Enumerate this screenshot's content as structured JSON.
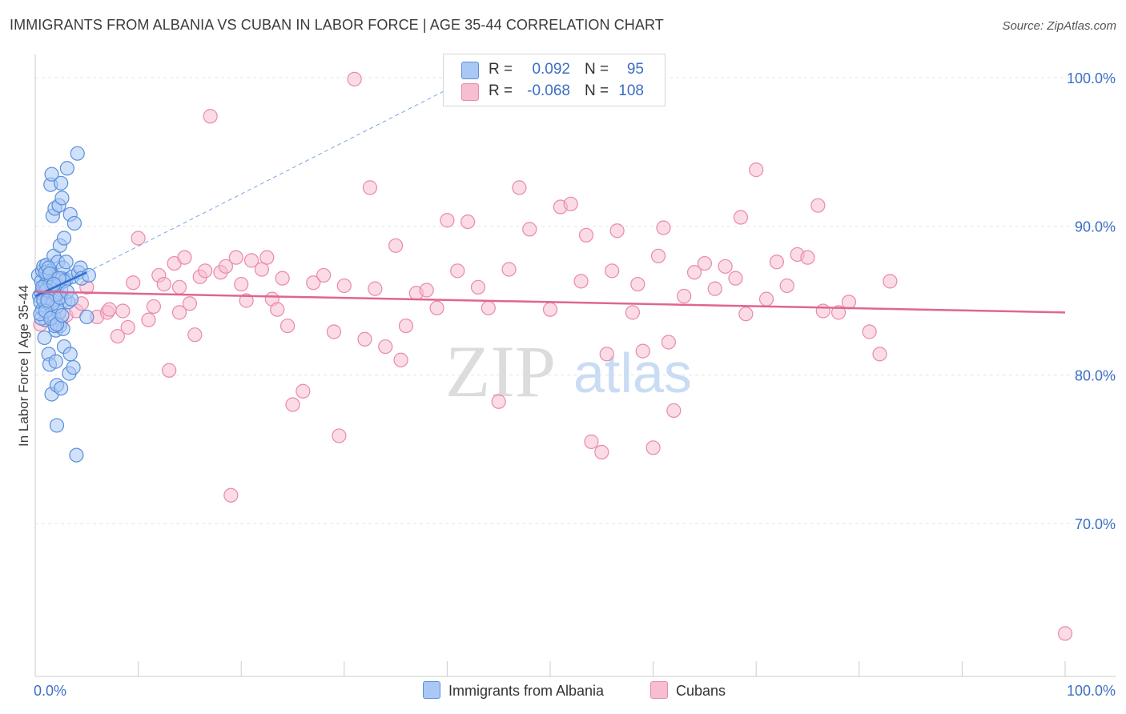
{
  "header": {
    "title": "IMMIGRANTS FROM ALBANIA VS CUBAN IN LABOR FORCE | AGE 35-44 CORRELATION CHART",
    "source": "Source: ZipAtlas.com"
  },
  "watermark": {
    "zip": "ZIP",
    "atlas": "atlas"
  },
  "legend": {
    "rows": [
      {
        "r_label": "R =",
        "r_value": "0.092",
        "n_label": "N =",
        "n_value": "95",
        "color": "#a9c8f5",
        "border": "#5b8fd9"
      },
      {
        "r_label": "R =",
        "r_value": "-0.068",
        "n_label": "N =",
        "n_value": "108",
        "color": "#f7bdd0",
        "border": "#e88aaa"
      }
    ]
  },
  "bottom_legend": [
    {
      "label": "Immigrants from Albania",
      "color": "#a9c8f5",
      "border": "#5b8fd9"
    },
    {
      "label": "Cubans",
      "color": "#f7bdd0",
      "border": "#e88aaa"
    }
  ],
  "chart_data": {
    "type": "scatter",
    "title": "IMMIGRANTS FROM ALBANIA VS CUBAN IN LABOR FORCE | AGE 35-44 CORRELATION CHART",
    "xlabel": "",
    "ylabel": "In Labor Force | Age 35-44",
    "xlim": [
      0,
      105
    ],
    "ylim": [
      60.5,
      103
    ],
    "x_tick_labels": [
      "0.0%",
      "100.0%"
    ],
    "y_ticks": [
      100,
      90,
      80,
      70
    ],
    "y_tick_labels": [
      "100.0%",
      "90.0%",
      "80.0%",
      "70.0%"
    ],
    "grid": true,
    "series": [
      {
        "name": "Immigrants from Albania",
        "color": "#5b8fd9",
        "fill": "#a9c8f5",
        "trend": {
          "x0": 0,
          "y0": 85.3,
          "x1": 5,
          "y1": 86.9,
          "ext_x1": 40,
          "ext_y1": 99.2
        },
        "points": [
          [
            0.3,
            86.7
          ],
          [
            0.4,
            85.3
          ],
          [
            0.5,
            84.9
          ],
          [
            0.6,
            85.5
          ],
          [
            0.6,
            86.3
          ],
          [
            0.7,
            87.0
          ],
          [
            0.7,
            84.4
          ],
          [
            0.8,
            87.3
          ],
          [
            0.8,
            85.8
          ],
          [
            0.9,
            82.5
          ],
          [
            1.0,
            86.1
          ],
          [
            1.0,
            83.7
          ],
          [
            1.1,
            84.6
          ],
          [
            1.1,
            87.4
          ],
          [
            1.2,
            85.2
          ],
          [
            1.3,
            86.0
          ],
          [
            1.3,
            81.4
          ],
          [
            1.4,
            84.0
          ],
          [
            1.4,
            80.7
          ],
          [
            1.5,
            92.8
          ],
          [
            1.5,
            87.0
          ],
          [
            1.6,
            78.7
          ],
          [
            1.6,
            93.5
          ],
          [
            1.7,
            90.7
          ],
          [
            1.7,
            85.6
          ],
          [
            1.8,
            88.0
          ],
          [
            1.8,
            84.0
          ],
          [
            1.9,
            91.2
          ],
          [
            1.9,
            86.6
          ],
          [
            2.0,
            80.9
          ],
          [
            2.0,
            83.0
          ],
          [
            2.1,
            79.3
          ],
          [
            2.1,
            76.6
          ],
          [
            2.2,
            87.6
          ],
          [
            2.2,
            85.4
          ],
          [
            2.3,
            91.4
          ],
          [
            2.3,
            84.2
          ],
          [
            2.4,
            88.7
          ],
          [
            2.4,
            83.3
          ],
          [
            2.5,
            92.9
          ],
          [
            2.5,
            79.1
          ],
          [
            2.6,
            91.9
          ],
          [
            2.6,
            86.5
          ],
          [
            2.7,
            87.2
          ],
          [
            2.7,
            83.1
          ],
          [
            2.8,
            89.2
          ],
          [
            2.8,
            81.9
          ],
          [
            2.9,
            85.0
          ],
          [
            3.0,
            87.6
          ],
          [
            3.0,
            86.4
          ],
          [
            3.1,
            93.9
          ],
          [
            3.2,
            84.9
          ],
          [
            3.3,
            80.1
          ],
          [
            3.4,
            90.8
          ],
          [
            3.4,
            81.4
          ],
          [
            3.6,
            86.6
          ],
          [
            3.7,
            80.5
          ],
          [
            3.8,
            90.2
          ],
          [
            4.0,
            74.6
          ],
          [
            4.1,
            94.9
          ],
          [
            4.2,
            86.9
          ],
          [
            4.4,
            87.2
          ],
          [
            4.5,
            86.5
          ],
          [
            5.0,
            83.9
          ],
          [
            5.2,
            86.7
          ],
          [
            0.9,
            85.6
          ],
          [
            1.2,
            86.6
          ],
          [
            1.5,
            86.2
          ],
          [
            1.8,
            85.1
          ],
          [
            2.1,
            84.6
          ],
          [
            0.6,
            83.8
          ],
          [
            1.0,
            86.9
          ],
          [
            1.3,
            87.2
          ],
          [
            1.6,
            85.9
          ],
          [
            1.9,
            83.3
          ],
          [
            2.2,
            86.0
          ],
          [
            2.5,
            85.7
          ],
          [
            2.8,
            86.3
          ],
          [
            0.8,
            85.0
          ],
          [
            1.1,
            85.7
          ],
          [
            1.4,
            86.8
          ],
          [
            1.7,
            84.8
          ],
          [
            2.0,
            85.4
          ],
          [
            2.3,
            86.5
          ],
          [
            0.5,
            84.1
          ],
          [
            0.7,
            85.9
          ],
          [
            1.0,
            84.3
          ],
          [
            1.2,
            85.0
          ],
          [
            1.5,
            83.8
          ],
          [
            1.8,
            86.1
          ],
          [
            2.1,
            83.4
          ],
          [
            2.4,
            85.2
          ],
          [
            2.6,
            84.0
          ],
          [
            3.1,
            85.6
          ],
          [
            3.5,
            85.1
          ]
        ]
      },
      {
        "name": "Cubans",
        "color": "#e88aaa",
        "fill": "#f7bdd0",
        "trend": {
          "x0": 0,
          "y0": 85.6,
          "x1": 100,
          "y1": 84.2
        },
        "points": [
          [
            0.5,
            83.4
          ],
          [
            2.5,
            83.6
          ],
          [
            3.0,
            84.0
          ],
          [
            4.0,
            84.3
          ],
          [
            4.5,
            84.8
          ],
          [
            5.0,
            85.9
          ],
          [
            6.0,
            83.9
          ],
          [
            7.0,
            84.2
          ],
          [
            7.2,
            84.4
          ],
          [
            8.0,
            82.6
          ],
          [
            8.5,
            84.3
          ],
          [
            9.0,
            83.2
          ],
          [
            9.5,
            86.2
          ],
          [
            10.0,
            89.2
          ],
          [
            11.0,
            83.7
          ],
          [
            11.5,
            84.6
          ],
          [
            12.0,
            86.7
          ],
          [
            12.5,
            86.1
          ],
          [
            13.0,
            80.3
          ],
          [
            13.5,
            87.5
          ],
          [
            14.0,
            85.9
          ],
          [
            14.5,
            87.9
          ],
          [
            15.0,
            84.8
          ],
          [
            15.5,
            82.7
          ],
          [
            16.0,
            86.6
          ],
          [
            16.5,
            87.0
          ],
          [
            17.0,
            97.4
          ],
          [
            18.0,
            86.9
          ],
          [
            18.5,
            87.3
          ],
          [
            19.0,
            71.9
          ],
          [
            19.5,
            87.9
          ],
          [
            20.0,
            86.1
          ],
          [
            21.0,
            87.7
          ],
          [
            22.0,
            87.1
          ],
          [
            22.5,
            87.9
          ],
          [
            23.0,
            85.1
          ],
          [
            23.5,
            84.4
          ],
          [
            24.0,
            86.5
          ],
          [
            24.5,
            83.3
          ],
          [
            25.0,
            78.0
          ],
          [
            26.0,
            78.9
          ],
          [
            27.0,
            86.2
          ],
          [
            28.0,
            86.7
          ],
          [
            29.0,
            82.9
          ],
          [
            29.5,
            75.9
          ],
          [
            30.0,
            86.0
          ],
          [
            31.0,
            99.9
          ],
          [
            32.0,
            82.4
          ],
          [
            32.5,
            92.6
          ],
          [
            33.0,
            85.8
          ],
          [
            34.0,
            81.9
          ],
          [
            35.0,
            88.7
          ],
          [
            36.0,
            83.3
          ],
          [
            37.0,
            85.5
          ],
          [
            38.0,
            85.7
          ],
          [
            39.0,
            84.5
          ],
          [
            40.0,
            90.4
          ],
          [
            41.0,
            87.0
          ],
          [
            42.0,
            90.3
          ],
          [
            43.0,
            85.9
          ],
          [
            44.0,
            84.5
          ],
          [
            45.0,
            78.2
          ],
          [
            46.0,
            87.1
          ],
          [
            47.0,
            92.6
          ],
          [
            50.0,
            84.4
          ],
          [
            51.0,
            91.3
          ],
          [
            52.0,
            91.5
          ],
          [
            53.0,
            86.3
          ],
          [
            53.5,
            89.4
          ],
          [
            54.0,
            75.5
          ],
          [
            55.0,
            74.8
          ],
          [
            55.5,
            81.4
          ],
          [
            56.0,
            87.0
          ],
          [
            56.5,
            89.7
          ],
          [
            58.0,
            84.2
          ],
          [
            59.0,
            81.6
          ],
          [
            60.0,
            75.1
          ],
          [
            60.5,
            88.0
          ],
          [
            61.0,
            89.9
          ],
          [
            61.5,
            82.2
          ],
          [
            62.0,
            77.6
          ],
          [
            63.0,
            85.3
          ],
          [
            64.0,
            86.9
          ],
          [
            65.0,
            87.5
          ],
          [
            66.0,
            85.8
          ],
          [
            67.0,
            87.3
          ],
          [
            68.0,
            86.5
          ],
          [
            68.5,
            90.6
          ],
          [
            69.0,
            84.1
          ],
          [
            70.0,
            93.8
          ],
          [
            71.0,
            85.1
          ],
          [
            72.0,
            87.6
          ],
          [
            73.0,
            86.0
          ],
          [
            74.0,
            88.1
          ],
          [
            75.0,
            87.9
          ],
          [
            76.0,
            91.4
          ],
          [
            76.5,
            84.3
          ],
          [
            78.0,
            84.2
          ],
          [
            79.0,
            84.9
          ],
          [
            81.0,
            82.9
          ],
          [
            82.0,
            81.4
          ],
          [
            83.0,
            86.3
          ],
          [
            100.0,
            62.6
          ],
          [
            14.0,
            84.2
          ],
          [
            35.5,
            81.0
          ],
          [
            48.0,
            89.8
          ],
          [
            58.5,
            86.1
          ],
          [
            20.5,
            85.0
          ]
        ]
      }
    ]
  }
}
